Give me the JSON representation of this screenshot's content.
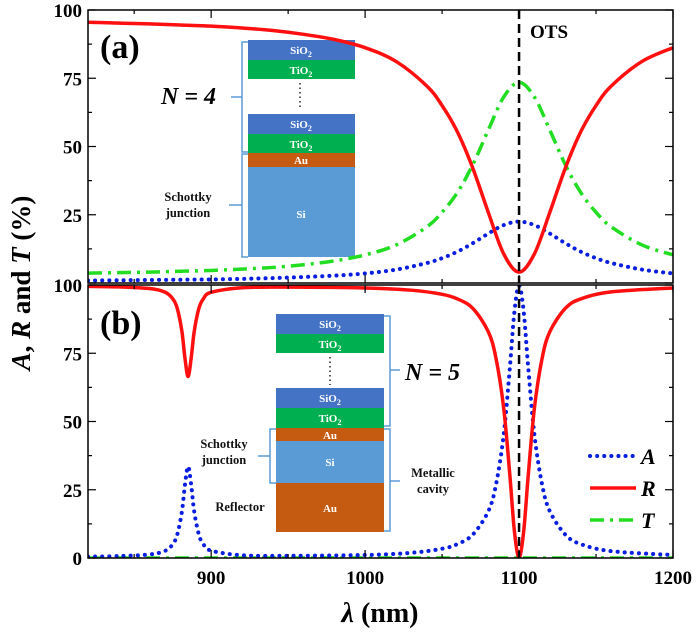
{
  "chart_data": [
    {
      "panel": "(a)",
      "type": "line",
      "x": [
        820,
        840,
        860,
        880,
        900,
        920,
        940,
        960,
        980,
        1000,
        1020,
        1040,
        1050,
        1060,
        1070,
        1080,
        1090,
        1100,
        1110,
        1120,
        1130,
        1140,
        1150,
        1160,
        1180,
        1200
      ],
      "series": [
        {
          "name": "A",
          "color": "#0a1ee0",
          "style": "dotted",
          "values": [
            0.9,
            1.0,
            1.1,
            1.2,
            1.3,
            1.5,
            1.8,
            2.2,
            2.7,
            3.5,
            4.9,
            7.3,
            9.1,
            11.5,
            14.6,
            18.1,
            21.2,
            22.5,
            21.2,
            18.1,
            14.6,
            11.5,
            9.1,
            7.3,
            4.9,
            3.5
          ]
        },
        {
          "name": "R",
          "color": "#ff1010",
          "style": "solid",
          "values": [
            95.5,
            95.2,
            94.9,
            94.5,
            94.1,
            93.4,
            92.5,
            91.1,
            89.2,
            86.2,
            81.2,
            72.2,
            65.0,
            55.3,
            42.0,
            25.9,
            10.7,
            4.0,
            10.7,
            25.9,
            42.0,
            55.3,
            65.0,
            72.2,
            81.2,
            86.2
          ]
        },
        {
          "name": "T",
          "color": "#22dd22",
          "style": "dash-dot",
          "values": [
            3.6,
            3.8,
            4.0,
            4.3,
            4.6,
            5.1,
            5.7,
            6.7,
            8.1,
            10.3,
            13.9,
            20.5,
            25.9,
            33.2,
            43.4,
            56.0,
            68.1,
            73.5,
            68.1,
            56.0,
            43.4,
            33.2,
            25.9,
            20.5,
            13.9,
            10.3
          ]
        }
      ],
      "xlim": [
        820,
        1200
      ],
      "ylim": [
        0,
        100
      ],
      "yticks": [
        0,
        25,
        50,
        75,
        100
      ],
      "annotation": "OTS",
      "inset": {
        "label": "N = 4",
        "layers": [
          "SiO2",
          "TiO2",
          "SiO2",
          "TiO2",
          "Au",
          "Si"
        ],
        "bracket_label": "Schottky junction"
      }
    },
    {
      "panel": "(b)",
      "type": "line",
      "x": [
        820,
        840,
        860,
        870,
        875,
        878,
        881,
        883,
        885,
        887,
        889,
        892,
        895,
        900,
        920,
        950,
        1000,
        1030,
        1050,
        1060,
        1070,
        1080,
        1085,
        1090,
        1094,
        1097,
        1100,
        1103,
        1106,
        1110,
        1115,
        1120,
        1130,
        1140,
        1160,
        1200
      ],
      "series": [
        {
          "name": "A",
          "color": "#0a1ee0",
          "style": "dotted",
          "values": [
            0.5,
            0.7,
            1.3,
            2.6,
            5.0,
            8.6,
            17.0,
            26.9,
            33.5,
            26.9,
            17.0,
            8.6,
            5.0,
            2.7,
            1.0,
            0.8,
            1.1,
            1.9,
            3.4,
            5.1,
            8.6,
            17.1,
            26.8,
            45.0,
            69.5,
            90.3,
            99.8,
            90.3,
            69.5,
            45.0,
            26.8,
            17.1,
            8.6,
            5.1,
            2.5,
            1.1
          ]
        },
        {
          "name": "R",
          "color": "#ff1010",
          "style": "solid",
          "values": [
            99.5,
            99.3,
            98.7,
            97.4,
            95.0,
            91.4,
            83.0,
            73.1,
            66.5,
            73.1,
            83.0,
            91.4,
            95.0,
            97.3,
            99.0,
            99.2,
            98.9,
            98.1,
            96.6,
            94.9,
            91.4,
            82.9,
            73.2,
            55.0,
            30.5,
            9.7,
            0.2,
            9.7,
            30.5,
            55.0,
            73.2,
            82.9,
            91.4,
            94.9,
            97.5,
            98.9
          ]
        },
        {
          "name": "T",
          "color": "#22dd22",
          "style": "dash-dot",
          "values": [
            0,
            0,
            0,
            0,
            0,
            0,
            0,
            0,
            0,
            0,
            0,
            0,
            0,
            0,
            0,
            0,
            0,
            0,
            0,
            0,
            0,
            0,
            0,
            0,
            0,
            0,
            0,
            0,
            0,
            0,
            0,
            0,
            0,
            0,
            0,
            0
          ]
        }
      ],
      "xlim": [
        820,
        1200
      ],
      "ylim": [
        0,
        100
      ],
      "yticks": [
        0,
        25,
        50,
        75,
        100
      ],
      "xticks": [
        900,
        1000,
        1100,
        1200
      ],
      "legend": "bottom-right",
      "inset": {
        "label": "N = 5",
        "layers": [
          "SiO2",
          "TiO2",
          "SiO2",
          "TiO2",
          "Au",
          "Si",
          "Au"
        ],
        "schottky_label": "Schottky junction",
        "reflector_label": "Reflector",
        "cavity_label": "Metallic cavity"
      }
    }
  ],
  "axes": {
    "ylabel": "A, R and T (%)",
    "xlabel": "λ (nm)"
  },
  "layer_colors": {
    "SiO2": "#4472c4",
    "TiO2": "#00b050",
    "Au": "#c55a11",
    "Si": "#5b9bd5"
  }
}
